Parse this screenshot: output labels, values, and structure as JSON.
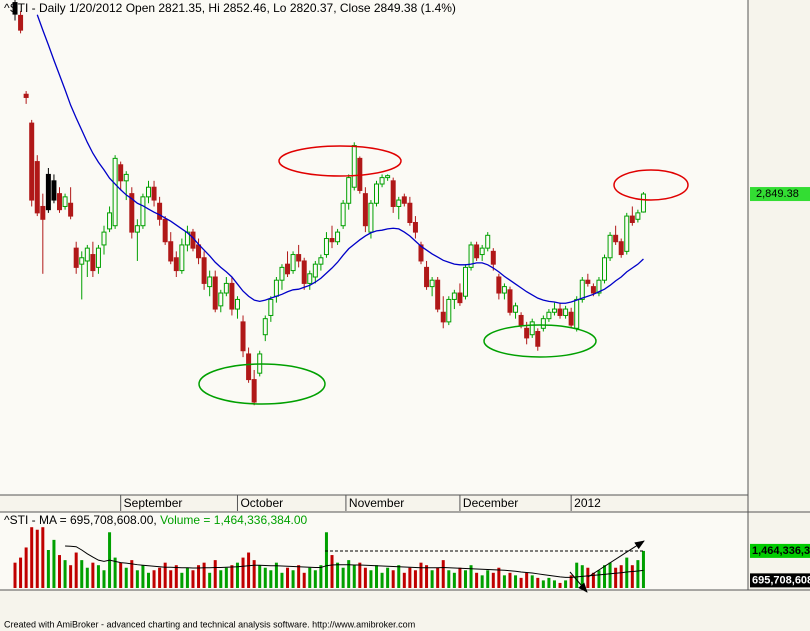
{
  "chart_data": [
    {
      "type": "candlestick",
      "title": "^STI - Daily 1/20/2012 Open 2821.35, Hi 2852.46, Lo 2820.37, Close 2849.38 (1.4%)",
      "xlim": [
        -2.7,
        131.8
      ],
      "xticks": [
        {
          "value": 19,
          "label": "September"
        },
        {
          "value": 40,
          "label": "October"
        },
        {
          "value": 59.5,
          "label": "November"
        },
        {
          "value": 80,
          "label": "December"
        },
        {
          "value": 100,
          "label": "2012"
        }
      ],
      "ylim": [
        2380,
        3152
      ],
      "grid": false,
      "up_color": "#00a000",
      "down_color": "#b01818",
      "neutral_color": "#000000",
      "open": [
        3148,
        3128,
        3005,
        2960,
        2900,
        2830,
        2880,
        2870,
        2850,
        2830,
        2835,
        2765,
        2740,
        2745,
        2755,
        2735,
        2770,
        2795,
        2800,
        2895,
        2870,
        2850,
        2790,
        2800,
        2845,
        2860,
        2835,
        2810,
        2775,
        2750,
        2730,
        2770,
        2790,
        2770,
        2750,
        2705,
        2720,
        2675,
        2695,
        2710,
        2670,
        2650,
        2600,
        2560,
        2570,
        2630,
        2660,
        2690,
        2715,
        2740,
        2730,
        2755,
        2745,
        2710,
        2720,
        2740,
        2755,
        2780,
        2775,
        2800,
        2835,
        2860,
        2905,
        2850,
        2790,
        2835,
        2865,
        2875,
        2870,
        2830,
        2845,
        2835,
        2805,
        2770,
        2735,
        2705,
        2715,
        2665,
        2650,
        2685,
        2695,
        2690,
        2735,
        2770,
        2755,
        2765,
        2760,
        2720,
        2695,
        2700,
        2665,
        2660,
        2640,
        2630,
        2635,
        2640,
        2655,
        2665,
        2670,
        2660,
        2665,
        2640,
        2685,
        2715,
        2705,
        2695,
        2715,
        2750,
        2785,
        2775,
        2760,
        2815,
        2810,
        2821.35
      ],
      "high": [
        3152,
        3135,
        3010,
        2965,
        2910,
        2850,
        2890,
        2880,
        2860,
        2850,
        2860,
        2775,
        2760,
        2770,
        2775,
        2770,
        2800,
        2830,
        2910,
        2900,
        2885,
        2860,
        2810,
        2850,
        2870,
        2870,
        2845,
        2815,
        2790,
        2760,
        2780,
        2800,
        2795,
        2780,
        2760,
        2730,
        2730,
        2700,
        2720,
        2720,
        2690,
        2660,
        2610,
        2575,
        2605,
        2660,
        2690,
        2720,
        2740,
        2760,
        2760,
        2770,
        2750,
        2730,
        2745,
        2755,
        2790,
        2800,
        2795,
        2840,
        2880,
        2930,
        2908,
        2860,
        2840,
        2870,
        2880,
        2880,
        2875,
        2845,
        2850,
        2845,
        2815,
        2775,
        2745,
        2720,
        2720,
        2690,
        2690,
        2700,
        2710,
        2740,
        2775,
        2775,
        2770,
        2790,
        2765,
        2725,
        2710,
        2705,
        2680,
        2665,
        2650,
        2655,
        2640,
        2660,
        2670,
        2680,
        2680,
        2675,
        2672,
        2690,
        2720,
        2725,
        2710,
        2720,
        2755,
        2790,
        2800,
        2780,
        2820,
        2830,
        2825,
        2852.46
      ],
      "low": [
        3120,
        3100,
        2990,
        2830,
        2815,
        2725,
        2820,
        2835,
        2820,
        2825,
        2810,
        2725,
        2685,
        2720,
        2720,
        2725,
        2755,
        2790,
        2795,
        2855,
        2840,
        2780,
        2745,
        2795,
        2835,
        2830,
        2800,
        2770,
        2740,
        2720,
        2725,
        2760,
        2760,
        2740,
        2700,
        2690,
        2665,
        2665,
        2690,
        2660,
        2655,
        2595,
        2555,
        2520,
        2565,
        2620,
        2650,
        2680,
        2700,
        2720,
        2725,
        2735,
        2700,
        2700,
        2710,
        2730,
        2750,
        2765,
        2770,
        2795,
        2825,
        2855,
        2850,
        2790,
        2780,
        2830,
        2860,
        2870,
        2820,
        2810,
        2830,
        2800,
        2780,
        2740,
        2700,
        2690,
        2665,
        2640,
        2645,
        2670,
        2675,
        2685,
        2730,
        2745,
        2745,
        2760,
        2730,
        2685,
        2685,
        2660,
        2655,
        2640,
        2615,
        2625,
        2605,
        2635,
        2650,
        2660,
        2655,
        2655,
        2640,
        2635,
        2680,
        2705,
        2690,
        2690,
        2710,
        2745,
        2770,
        2750,
        2755,
        2800,
        2805,
        2820.37
      ],
      "close": [
        3130,
        3105,
        3000,
        2840,
        2820,
        2810,
        2825,
        2840,
        2825,
        2845,
        2815,
        2735,
        2750,
        2765,
        2730,
        2765,
        2790,
        2820,
        2905,
        2870,
        2880,
        2790,
        2800,
        2845,
        2860,
        2840,
        2810,
        2775,
        2745,
        2730,
        2770,
        2790,
        2765,
        2750,
        2710,
        2720,
        2670,
        2695,
        2710,
        2670,
        2685,
        2605,
        2560,
        2525,
        2600,
        2655,
        2685,
        2715,
        2735,
        2725,
        2755,
        2745,
        2710,
        2725,
        2740,
        2750,
        2780,
        2775,
        2790,
        2835,
        2875,
        2925,
        2855,
        2800,
        2835,
        2865,
        2875,
        2878,
        2830,
        2840,
        2835,
        2805,
        2790,
        2745,
        2705,
        2715,
        2670,
        2650,
        2685,
        2695,
        2680,
        2735,
        2770,
        2750,
        2765,
        2785,
        2740,
        2695,
        2705,
        2665,
        2675,
        2645,
        2625,
        2650,
        2612,
        2655,
        2665,
        2670,
        2660,
        2670,
        2645,
        2685,
        2715,
        2710,
        2695,
        2715,
        2750,
        2785,
        2775,
        2755,
        2815,
        2805,
        2820,
        2849.38
      ],
      "close_label": "2,849.38",
      "ma": {
        "color": "#0000c8",
        "values": [
          null,
          null,
          null,
          null,
          3129,
          3105,
          3082,
          3058,
          3035,
          3012,
          2988,
          2968,
          2949,
          2930,
          2913,
          2899,
          2887,
          2874,
          2865,
          2856,
          2848,
          2842,
          2835,
          2831,
          2826,
          2821,
          2817,
          2812,
          2807,
          2801,
          2795,
          2789,
          2781,
          2771,
          2762,
          2753,
          2743,
          2735,
          2728,
          2720,
          2709,
          2698,
          2690,
          2684,
          2682,
          2684,
          2687,
          2690,
          2693,
          2697,
          2700,
          2701,
          2704,
          2707,
          2712,
          2718,
          2726,
          2734,
          2743,
          2754,
          2764,
          2771,
          2778,
          2784,
          2789,
          2792,
          2793,
          2795,
          2796,
          2795,
          2790,
          2784,
          2776,
          2768,
          2762,
          2756,
          2751,
          2746,
          2743,
          2740,
          2739,
          2739,
          2740,
          2742,
          2742,
          2739,
          2734,
          2728,
          2721,
          2715,
          2709,
          2703,
          2697,
          2692,
          2687,
          2684,
          2682,
          2681,
          2679,
          2679,
          2681,
          2684,
          2687,
          2690,
          2693,
          2697,
          2701,
          2707,
          2714,
          2720,
          2728,
          2734,
          2740,
          2748
        ]
      }
    },
    {
      "type": "volume",
      "title": "^STI - MA = 695,708,608.00, ",
      "name": "Volume = 1,464,336,384.00",
      "ylim": [
        0,
        3000000000.0
      ],
      "up_color": "#00a000",
      "down_color": "#c00000",
      "values": [
        1000000000.0,
        1200000000.0,
        1600000000.0,
        2400000000.0,
        2300000000.0,
        2400000000.0,
        1500000000.0,
        1900000000.0,
        1300000000.0,
        1100000000.0,
        900000000.0,
        1400000000.0,
        1100000000.0,
        800000000.0,
        1000000000.0,
        900000000.0,
        700000000.0,
        2200000000.0,
        1200000000.0,
        1000000000.0,
        800000000.0,
        1100000000.0,
        700000000.0,
        900000000.0,
        600000000.0,
        700000000.0,
        800000000.0,
        1000000000.0,
        700000000.0,
        900000000.0,
        600000000.0,
        800000000.0,
        700000000.0,
        900000000.0,
        1000000000.0,
        600000000.0,
        1100000000.0,
        700000000.0,
        800000000.0,
        900000000.0,
        1000000000.0,
        1200000000.0,
        1400000000.0,
        1100000000.0,
        900000000.0,
        800000000.0,
        700000000.0,
        1000000000.0,
        600000000.0,
        800000000.0,
        700000000.0,
        900000000.0,
        600000000.0,
        800000000.0,
        700000000.0,
        900000000.0,
        2200000000.0,
        1300000000.0,
        1000000000.0,
        800000000.0,
        1100000000.0,
        900000000.0,
        1000000000.0,
        800000000.0,
        700000000.0,
        900000000.0,
        600000000.0,
        800000000.0,
        700000000.0,
        900000000.0,
        600000000.0,
        800000000.0,
        700000000.0,
        1000000000.0,
        900000000.0,
        700000000.0,
        800000000.0,
        1100000000.0,
        700000000.0,
        600000000.0,
        800000000.0,
        700000000.0,
        900000000.0,
        600000000.0,
        500000000.0,
        700000000.0,
        600000000.0,
        800000000.0,
        500000000.0,
        600000000.0,
        500000000.0,
        400000000.0,
        600000000.0,
        500000000.0,
        400000000.0,
        300000000.0,
        400000000.0,
        300000000.0,
        200000000.0,
        300000000.0,
        500000000.0,
        1000000000.0,
        900000000.0,
        800000000.0,
        600000000.0,
        700000000.0,
        900000000.0,
        1000000000.0,
        800000000.0,
        900000000.0,
        1200000000.0,
        900000000.0,
        1100000000.0,
        1464336384
      ],
      "last_label": "1,464,336,384",
      "ma": {
        "color": "#000000",
        "last_label": "695,708,608",
        "values": [
          null,
          null,
          null,
          null,
          null,
          null,
          null,
          null,
          null,
          1660000000.0,
          1650000000.0,
          1630000000.0,
          1500000000.0,
          1350000000.0,
          1220000000.0,
          1100000000.0,
          1050000000.0,
          1100000000.0,
          1050000000.0,
          1000000000.0,
          980000000.0,
          950000000.0,
          920000000.0,
          900000000.0,
          880000000.0,
          860000000.0,
          840000000.0,
          820000000.0,
          820000000.0,
          810000000.0,
          800000000.0,
          800000000.0,
          790000000.0,
          790000000.0,
          800000000.0,
          800000000.0,
          810000000.0,
          810000000.0,
          820000000.0,
          830000000.0,
          840000000.0,
          860000000.0,
          880000000.0,
          900000000.0,
          900000000.0,
          890000000.0,
          880000000.0,
          880000000.0,
          870000000.0,
          860000000.0,
          850000000.0,
          840000000.0,
          830000000.0,
          820000000.0,
          810000000.0,
          810000000.0,
          880000000.0,
          910000000.0,
          920000000.0,
          920000000.0,
          920000000.0,
          910000000.0,
          910000000.0,
          900000000.0,
          890000000.0,
          880000000.0,
          870000000.0,
          860000000.0,
          850000000.0,
          840000000.0,
          830000000.0,
          820000000.0,
          810000000.0,
          800000000.0,
          800000000.0,
          800000000.0,
          800000000.0,
          810000000.0,
          800000000.0,
          790000000.0,
          780000000.0,
          770000000.0,
          760000000.0,
          750000000.0,
          740000000.0,
          730000000.0,
          720000000.0,
          710000000.0,
          700000000.0,
          680000000.0,
          660000000.0,
          630000000.0,
          610000000.0,
          590000000.0,
          560000000.0,
          530000000.0,
          500000000.0,
          470000000.0,
          440000000.0,
          420000000.0,
          420000000.0,
          440000000.0,
          460000000.0,
          480000000.0,
          500000000.0,
          520000000.0,
          540000000.0,
          560000000.0,
          580000000.0,
          600000000.0,
          630000000.0,
          650000000.0,
          670000000.0,
          695708608
        ]
      }
    }
  ],
  "footer": "Created with AmiBroker - advanced charting and technical analysis software. http://www.amibroker.com"
}
